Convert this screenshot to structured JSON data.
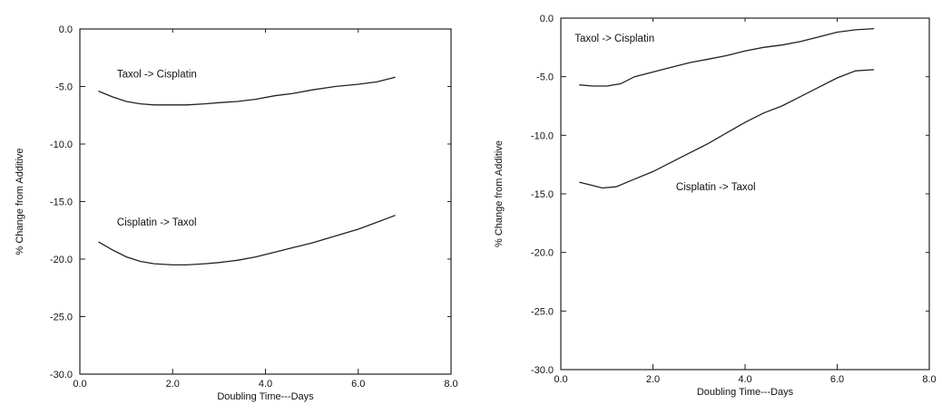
{
  "chart_data": [
    {
      "type": "line",
      "title": "",
      "xlabel": "Doubling Time---Days",
      "ylabel": "% Change from Additive",
      "xlim": [
        0.0,
        8.0
      ],
      "ylim": [
        -30.0,
        0.0
      ],
      "xticks": [
        0.0,
        2.0,
        4.0,
        6.0,
        8.0
      ],
      "xtick_labels": [
        "0.0",
        "2.0",
        "4.0",
        "6.0",
        "8.0"
      ],
      "yticks": [
        0.0,
        -5.0,
        -10.0,
        -15.0,
        -20.0,
        -25.0,
        -30.0
      ],
      "ytick_labels": [
        "0.0",
        "-5.0",
        "-10.0",
        "-15.0",
        "-20.0",
        "-25.0",
        "-30.0"
      ],
      "grid": false,
      "legend": "none",
      "series": [
        {
          "name": "Taxol -> Cisplatin",
          "label_at": [
            0.8,
            -4.2
          ],
          "x": [
            0.4,
            0.7,
            1.0,
            1.3,
            1.6,
            2.0,
            2.3,
            2.7,
            3.0,
            3.4,
            3.8,
            4.2,
            4.6,
            5.0,
            5.5,
            6.0,
            6.4,
            6.8
          ],
          "y": [
            -5.4,
            -5.9,
            -6.3,
            -6.5,
            -6.6,
            -6.6,
            -6.6,
            -6.5,
            -6.4,
            -6.3,
            -6.1,
            -5.8,
            -5.6,
            -5.3,
            -5.0,
            -4.8,
            -4.6,
            -4.2
          ]
        },
        {
          "name": "Cisplatin -> Taxol",
          "label_at": [
            0.8,
            -17.1
          ],
          "x": [
            0.4,
            0.7,
            1.0,
            1.3,
            1.6,
            2.0,
            2.3,
            2.7,
            3.0,
            3.4,
            3.8,
            4.2,
            4.6,
            5.0,
            5.5,
            6.0,
            6.4,
            6.8
          ],
          "y": [
            -18.5,
            -19.2,
            -19.8,
            -20.2,
            -20.4,
            -20.5,
            -20.5,
            -20.4,
            -20.3,
            -20.1,
            -19.8,
            -19.4,
            -19.0,
            -18.6,
            -18.0,
            -17.4,
            -16.8,
            -16.2
          ]
        }
      ]
    },
    {
      "type": "line",
      "title": "",
      "xlabel": "Doubling Time---Days",
      "ylabel": "% Change from Additive",
      "xlim": [
        0.0,
        8.0
      ],
      "ylim": [
        -30.0,
        0.0
      ],
      "xticks": [
        0.0,
        2.0,
        4.0,
        6.0,
        8.0
      ],
      "xtick_labels": [
        "0.0",
        "2.0",
        "4.0",
        "6.0",
        "8.0"
      ],
      "yticks": [
        0.0,
        -5.0,
        -10.0,
        -15.0,
        -20.0,
        -25.0,
        -30.0
      ],
      "ytick_labels": [
        "0.0",
        "-5.0",
        "-10.0",
        "-15.0",
        "-20.0",
        "-25.0",
        "-30.0"
      ],
      "grid": false,
      "legend": "none",
      "series": [
        {
          "name": "Taxol -> Cisplatin",
          "label_at": [
            0.3,
            -2.0
          ],
          "x": [
            0.4,
            0.7,
            1.0,
            1.3,
            1.6,
            2.0,
            2.4,
            2.8,
            3.2,
            3.6,
            4.0,
            4.4,
            4.8,
            5.2,
            5.6,
            6.0,
            6.4,
            6.8
          ],
          "y": [
            -5.7,
            -5.8,
            -5.8,
            -5.6,
            -5.0,
            -4.6,
            -4.2,
            -3.8,
            -3.5,
            -3.2,
            -2.8,
            -2.5,
            -2.3,
            -2.0,
            -1.6,
            -1.2,
            -1.0,
            -0.9
          ]
        },
        {
          "name": "Cisplatin -> Taxol",
          "label_at": [
            2.5,
            -14.7
          ],
          "x": [
            0.4,
            0.7,
            0.9,
            1.2,
            1.5,
            2.0,
            2.4,
            2.8,
            3.2,
            3.6,
            4.0,
            4.4,
            4.8,
            5.2,
            5.6,
            6.0,
            6.4,
            6.8
          ],
          "y": [
            -14.0,
            -14.3,
            -14.5,
            -14.4,
            -13.9,
            -13.1,
            -12.3,
            -11.5,
            -10.7,
            -9.8,
            -8.9,
            -8.1,
            -7.5,
            -6.7,
            -5.9,
            -5.1,
            -4.5,
            -4.4
          ]
        }
      ]
    }
  ]
}
